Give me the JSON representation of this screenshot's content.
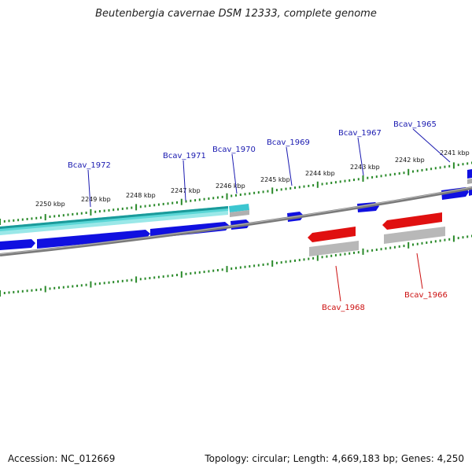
{
  "title": "Beutenbergia cavernae DSM 12333, complete genome",
  "footer": {
    "accession": "Accession: NC_012669",
    "summary": "Topology: circular; Length: 4,669,183 bp; Genes: 4,250"
  },
  "colors": {
    "forward_gene": "#0000dd",
    "reverse_gene": "#dd0000",
    "cds_cyan": "#22c4c4",
    "cds_gray": "#aaaaaa",
    "backbone": "#808080",
    "tick": "#2a8a2a",
    "forward_label": "#1a1ab0",
    "reverse_label": "#cc1111"
  },
  "kbp_labels": [
    "2250 kbp",
    "2249 kbp",
    "2248 kbp",
    "2247 kbp",
    "2246 kbp",
    "2245 kbp",
    "2244 kbp",
    "2243 kbp",
    "2242 kbp",
    "2241 kbp"
  ],
  "genes_top": [
    "Bcav_1972",
    "Bcav_1971",
    "Bcav_1970",
    "Bcav_1969",
    "Bcav_1967",
    "Bcav_1965"
  ],
  "genes_bottom": [
    "Bcav_1968",
    "Bcav_1966"
  ]
}
